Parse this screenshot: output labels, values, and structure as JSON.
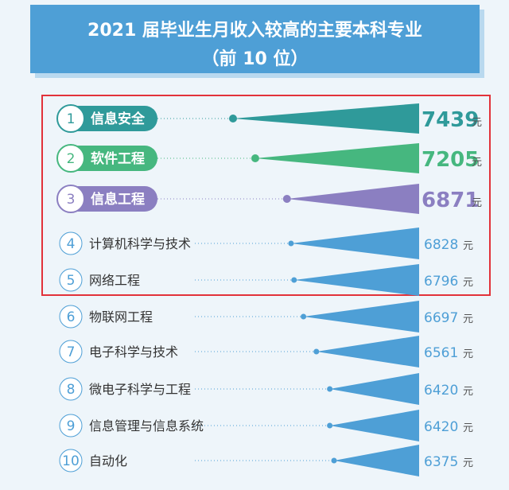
{
  "title": {
    "line1": "2021 届毕业生月收入较高的主要本科专业",
    "line2": "（前 10 位）"
  },
  "unit": "元",
  "colors": {
    "banner": "#4e9fd6",
    "top1": "#2f9a9a",
    "top2": "#46b77f",
    "top3": "#8b7fc1",
    "rest": "#4e9fd6",
    "highlight": "#e2323a"
  },
  "chart_data": {
    "type": "bar",
    "title": "2021 届毕业生月收入较高的主要本科专业（前 10 位）",
    "categories": [
      "信息安全",
      "软件工程",
      "信息工程",
      "计算机科学与技术",
      "网络工程",
      "物联网工程",
      "电子科学与技术",
      "微电子科学与工程",
      "信息管理与信息系统",
      "自动化"
    ],
    "ranks": [
      "1",
      "2",
      "3",
      "4",
      "5",
      "6",
      "7",
      "8",
      "9",
      "10"
    ],
    "values": [
      7439,
      7205,
      6871,
      6828,
      6796,
      6697,
      6561,
      6420,
      6420,
      6375
    ],
    "value_labels": [
      "7439",
      "7205",
      "6871",
      "6828",
      "6796",
      "6697",
      "6561",
      "6420",
      "6420",
      "6375"
    ],
    "unit": "元"
  }
}
